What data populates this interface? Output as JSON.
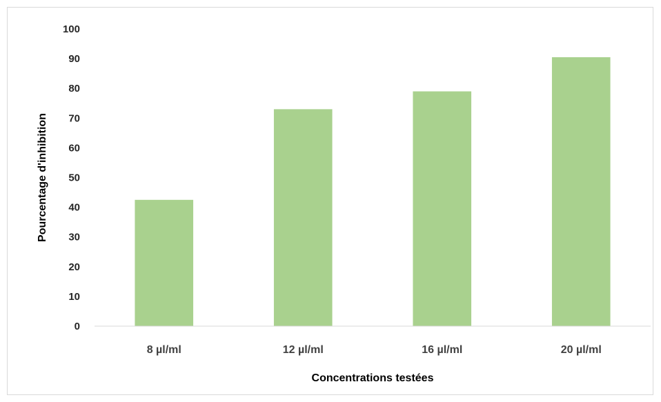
{
  "chart_data": {
    "type": "bar",
    "categories": [
      "8 µl/ml",
      "12 µl/ml",
      "16 µl/ml",
      "20 µl/ml"
    ],
    "values": [
      42.5,
      73,
      79,
      90.5
    ],
    "xlabel": "Concentrations testées",
    "ylabel": "Pourcentage d'inhibition",
    "ylim": [
      0,
      100
    ],
    "yticks": [
      0,
      10,
      20,
      30,
      40,
      50,
      60,
      70,
      80,
      90,
      100
    ],
    "grid": false,
    "legend": "none",
    "bar_color": "#a9d18e",
    "axis_color": "#d9d9d9"
  }
}
